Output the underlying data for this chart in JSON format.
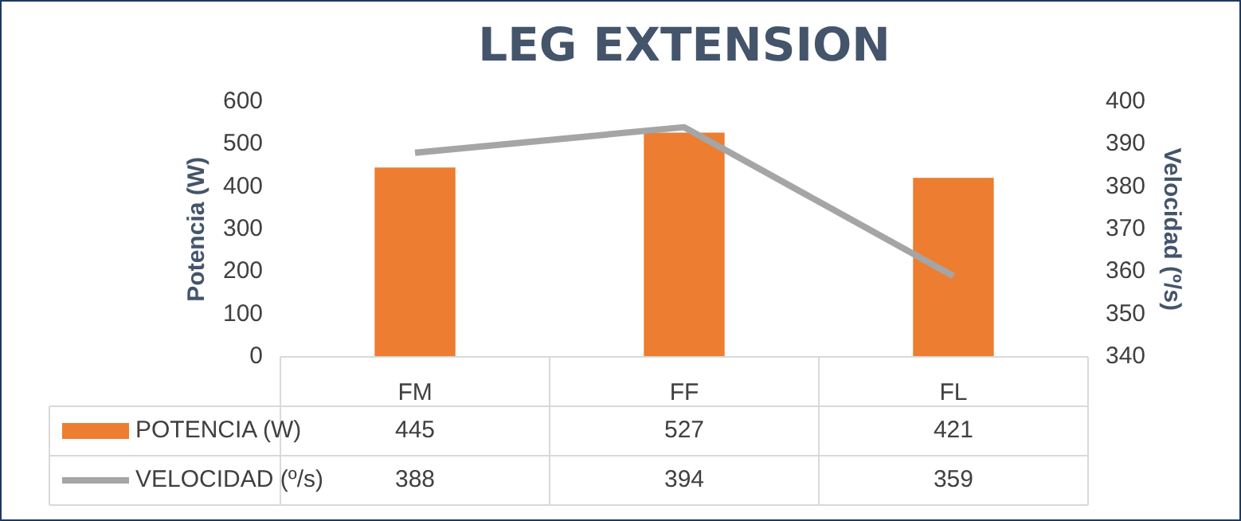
{
  "chart_data": {
    "type": "bar",
    "title": "LEG EXTENSION",
    "ylabel": "Potencia (W)",
    "y2label": "Velocidad (º/s)",
    "categories": [
      "FM",
      "FF",
      "FL"
    ],
    "series": [
      {
        "name": "POTENCIA (W)",
        "color": "#ed7d31",
        "values": [
          445,
          527,
          421
        ]
      },
      {
        "name": "VELOCIDAD (º/s)",
        "type": "line",
        "axis": "y2",
        "color": "#a5a5a5",
        "values": [
          388,
          394,
          359
        ]
      }
    ],
    "ylim": [
      0,
      600
    ],
    "yticks": [
      0,
      100,
      200,
      300,
      400,
      500,
      600
    ],
    "y2lim": [
      340,
      400
    ],
    "y2ticks": [
      340,
      350,
      360,
      370,
      380,
      390,
      400
    ],
    "grid": false,
    "legend": "bottom",
    "data_labels": true,
    "marker": "none",
    "line_style": "solid"
  }
}
